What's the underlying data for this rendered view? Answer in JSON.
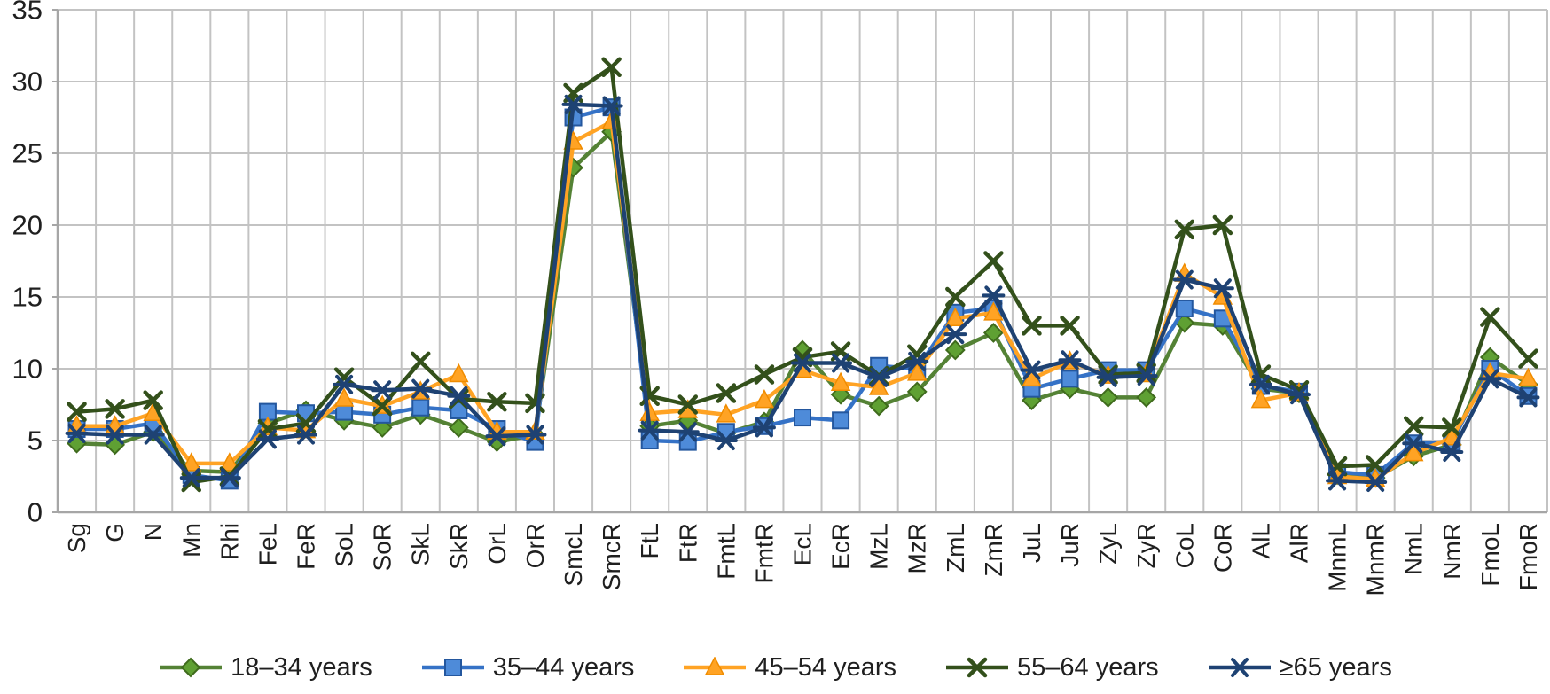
{
  "chart_data": {
    "type": "line",
    "title": "",
    "xlabel": "",
    "ylabel": "",
    "ylim": [
      0,
      35
    ],
    "yticks": [
      0,
      5,
      10,
      15,
      20,
      25,
      30,
      35
    ],
    "grid": true,
    "legend_position": "bottom",
    "grid_color": "#c3c3c3",
    "axis_color": "#a6a6a6",
    "text_color": "#1f1f1f",
    "categories": [
      "Sg",
      "G",
      "N",
      "Mn",
      "Rhi",
      "FeL",
      "FeR",
      "SoL",
      "SoR",
      "SkL",
      "SkR",
      "OrL",
      "OrR",
      "SmcL",
      "SmcR",
      "FtL",
      "FtR",
      "FmtL",
      "FmtR",
      "EcL",
      "EcR",
      "MzL",
      "MzR",
      "ZmL",
      "ZmR",
      "JuL",
      "JuR",
      "ZyL",
      "ZyR",
      "CoL",
      "CoR",
      "AlL",
      "AlR",
      "MnmL",
      "MnmR",
      "NmL",
      "NmR",
      "FmoL",
      "FmoR"
    ],
    "series": [
      {
        "name": "18–34 years",
        "marker": "diamond",
        "line": "#548235",
        "fill": "#5FA033",
        "edge": "#3f6b1d",
        "values": [
          4.8,
          4.7,
          5.6,
          2.9,
          2.8,
          6.2,
          7.1,
          6.4,
          5.9,
          6.8,
          5.9,
          4.9,
          5.4,
          24.0,
          26.5,
          6.0,
          6.4,
          5.5,
          6.3,
          11.3,
          8.2,
          7.4,
          8.4,
          11.3,
          12.5,
          7.8,
          8.6,
          8.0,
          8.0,
          13.2,
          13.0,
          8.6,
          8.3,
          2.6,
          2.4,
          3.9,
          4.7,
          10.8,
          8.9
        ]
      },
      {
        "name": "35–44 years",
        "marker": "square",
        "line": "#3572C6",
        "fill": "#4E8BD9",
        "edge": "#24579e",
        "values": [
          5.8,
          5.8,
          6.2,
          2.6,
          2.2,
          7.0,
          6.9,
          7.0,
          6.8,
          7.3,
          7.1,
          5.8,
          4.9,
          27.5,
          28.2,
          5.0,
          4.9,
          5.6,
          6.0,
          6.6,
          6.4,
          10.2,
          10.0,
          13.9,
          14.2,
          8.6,
          9.3,
          9.9,
          9.9,
          14.2,
          13.5,
          8.8,
          8.4,
          2.8,
          2.6,
          4.8,
          4.9,
          10.0,
          8.1
        ]
      },
      {
        "name": "45–54 years",
        "marker": "triangle",
        "line": "#FFA324",
        "fill": "#FFA324",
        "edge": "#f08c00",
        "values": [
          6.0,
          6.0,
          6.9,
          3.4,
          3.4,
          5.9,
          5.7,
          7.9,
          7.4,
          8.4,
          9.6,
          5.6,
          5.6,
          25.8,
          27.2,
          6.9,
          7.1,
          6.8,
          7.8,
          9.9,
          9.0,
          8.7,
          9.7,
          13.5,
          13.9,
          9.3,
          10.5,
          9.5,
          9.6,
          16.6,
          15.0,
          7.8,
          8.3,
          2.5,
          2.3,
          4.1,
          5.2,
          9.7,
          9.3
        ]
      },
      {
        "name": "55–64 years",
        "marker": "x",
        "line": "#33501B",
        "fill": "#33501B",
        "edge": "#33501B",
        "values": [
          7.0,
          7.2,
          7.8,
          2.1,
          2.5,
          5.8,
          6.2,
          9.4,
          7.4,
          10.5,
          7.9,
          7.7,
          7.6,
          29.2,
          31.0,
          8.1,
          7.5,
          8.3,
          9.6,
          10.8,
          11.2,
          9.5,
          11.0,
          15.0,
          17.5,
          13.0,
          13.0,
          9.6,
          9.7,
          19.7,
          20.0,
          9.6,
          8.5,
          3.2,
          3.3,
          6.0,
          5.9,
          13.6,
          10.7
        ]
      },
      {
        "name": "≥65 years",
        "marker": "star",
        "line": "#1E4273",
        "fill": "#1E4273",
        "edge": "#1E4273",
        "values": [
          5.5,
          5.4,
          5.4,
          2.4,
          2.4,
          5.1,
          5.4,
          8.9,
          8.5,
          8.6,
          8.1,
          5.3,
          5.4,
          28.4,
          28.3,
          5.7,
          5.6,
          5.0,
          5.9,
          10.4,
          10.4,
          9.4,
          10.5,
          12.4,
          15.1,
          9.9,
          10.6,
          9.4,
          9.5,
          16.2,
          15.6,
          8.9,
          8.2,
          2.2,
          2.1,
          4.8,
          4.2,
          9.3,
          8.0
        ]
      }
    ]
  }
}
